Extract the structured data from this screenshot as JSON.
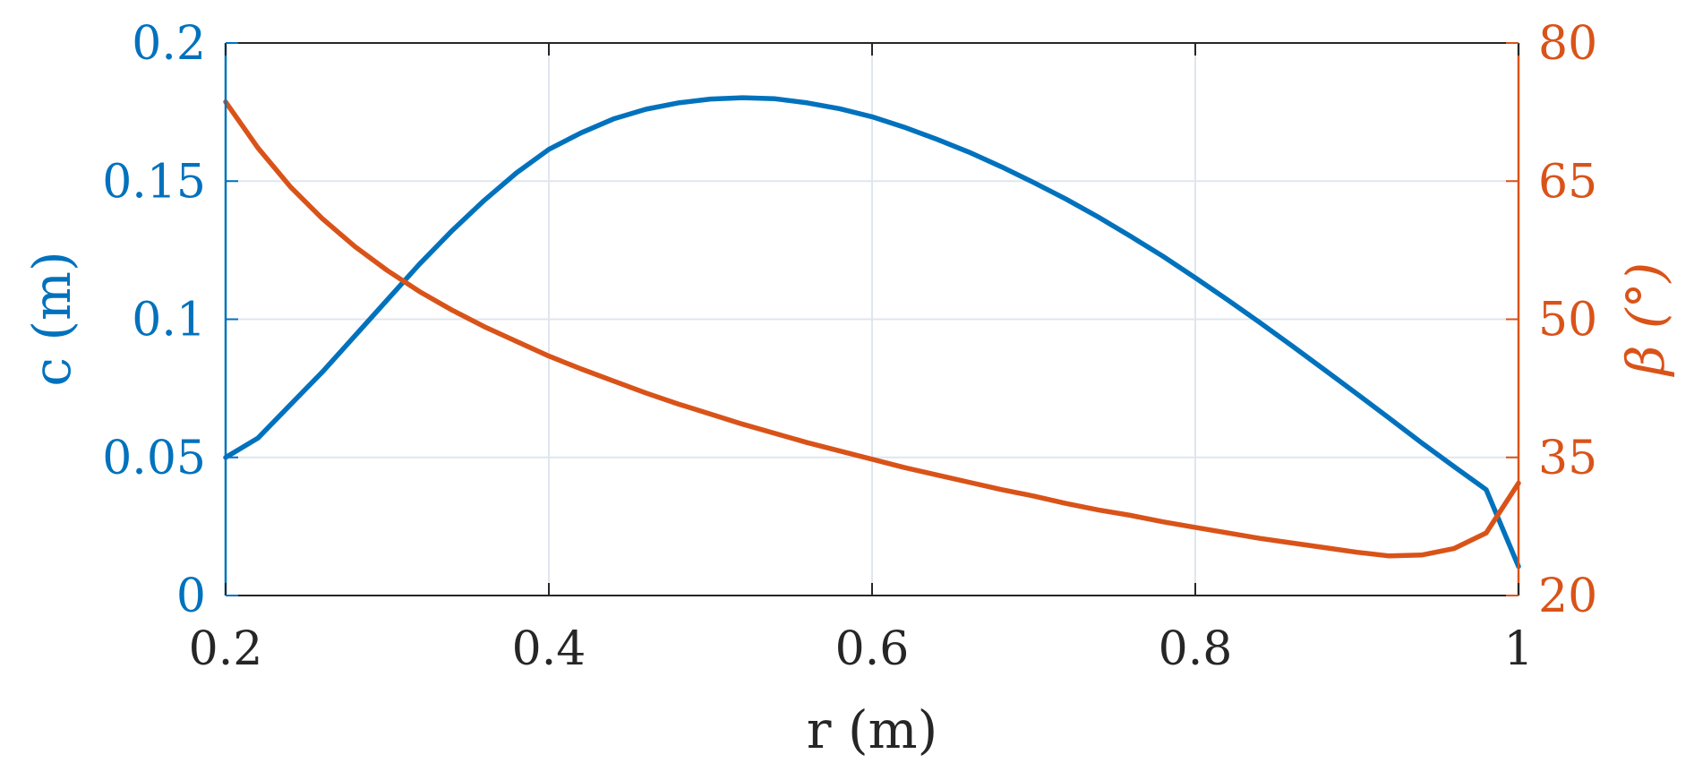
{
  "chart_data": {
    "type": "line",
    "title": "",
    "xlabel": "r (m)",
    "ylabel_left": "c (m)",
    "ylabel_right": "β (°)",
    "xlim": [
      0.2,
      1
    ],
    "ylim_left": [
      0,
      0.2
    ],
    "ylim_right": [
      20,
      80
    ],
    "grid": true,
    "xticks": [
      "0.2",
      "0.4",
      "0.6",
      "0.8",
      "1"
    ],
    "yticks_left": [
      "0",
      "0.05",
      "0.1",
      "0.15",
      "0.2"
    ],
    "yticks_right": [
      "20",
      "35",
      "50",
      "65",
      "80"
    ],
    "colors": {
      "left": "#0072bd",
      "right": "#d95319",
      "axis": "#262626"
    },
    "x": [
      0.2,
      0.22,
      0.24,
      0.26,
      0.28,
      0.3,
      0.32,
      0.34,
      0.36,
      0.38,
      0.4,
      0.42,
      0.44,
      0.46,
      0.48,
      0.5,
      0.52,
      0.54,
      0.56,
      0.58,
      0.6,
      0.62,
      0.64,
      0.66,
      0.68,
      0.7,
      0.72,
      0.74,
      0.76,
      0.78,
      0.8,
      0.82,
      0.84,
      0.86,
      0.88,
      0.9,
      0.92,
      0.94,
      0.96,
      0.98,
      1.0
    ],
    "series": [
      {
        "axis": "left",
        "values": [
          0.05,
          0.057,
          0.069,
          0.081,
          0.094,
          0.107,
          0.12,
          0.132,
          0.143,
          0.153,
          0.1615,
          0.1675,
          0.1725,
          0.176,
          0.1783,
          0.1797,
          0.1802,
          0.1798,
          0.1783,
          0.1762,
          0.1733,
          0.1695,
          0.1652,
          0.1605,
          0.1552,
          0.1495,
          0.1435,
          0.137,
          0.13,
          0.1228,
          0.115,
          0.107,
          0.0988,
          0.0903,
          0.0817,
          0.073,
          0.0642,
          0.0553,
          0.0467,
          0.0383,
          0.0105
        ]
      },
      {
        "axis": "right",
        "values": [
          73.6,
          68.6,
          64.4,
          60.9,
          57.9,
          55.3,
          53.0,
          51.0,
          49.2,
          47.6,
          46.0,
          44.6,
          43.3,
          42.0,
          40.8,
          39.7,
          38.6,
          37.6,
          36.6,
          35.7,
          34.8,
          33.9,
          33.1,
          32.3,
          31.5,
          30.8,
          30.0,
          29.3,
          28.7,
          28.0,
          27.4,
          26.8,
          26.2,
          25.7,
          25.2,
          24.7,
          24.3,
          24.4,
          25.1,
          26.8,
          32.2
        ]
      }
    ]
  }
}
